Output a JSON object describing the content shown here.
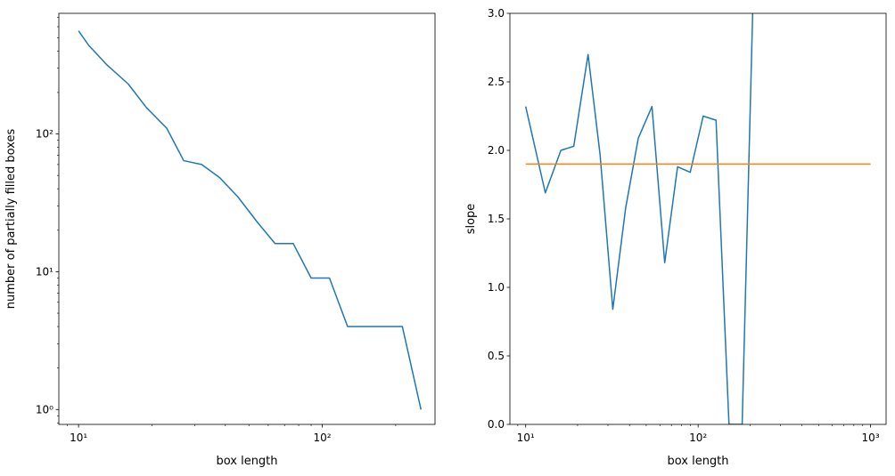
{
  "chart_data": [
    {
      "type": "line",
      "title": "",
      "xlabel": "box length",
      "ylabel": "number of partially filled boxes",
      "xscale": "log",
      "yscale": "log",
      "xlim": [
        8.3,
        290
      ],
      "ylim": [
        0.78,
        750
      ],
      "grid": false,
      "x_ticks": [
        {
          "value": 10,
          "label": "10¹"
        },
        {
          "value": 100,
          "label": "10²"
        }
      ],
      "y_ticks": [
        {
          "value": 1,
          "label": "10⁰"
        },
        {
          "value": 10,
          "label": "10¹"
        },
        {
          "value": 100,
          "label": "10²"
        }
      ],
      "series": [
        {
          "color": "#1f77b4",
          "x": [
            10,
            11,
            13,
            16,
            19,
            23,
            27,
            32,
            38,
            45,
            54,
            64,
            76,
            90,
            107,
            127,
            151,
            180,
            213,
            254
          ],
          "y": [
            560,
            440,
            320,
            230,
            155,
            110,
            64,
            60,
            48,
            35,
            23,
            16,
            16,
            9,
            9,
            4,
            4,
            4,
            4,
            1
          ]
        }
      ]
    },
    {
      "type": "line",
      "title": "",
      "xlabel": "box length",
      "ylabel": "slope",
      "xscale": "log",
      "yscale": "linear",
      "xlim": [
        8.1,
        1230
      ],
      "ylim": [
        0,
        3
      ],
      "grid": false,
      "x_ticks": [
        {
          "value": 10,
          "label": "10¹"
        },
        {
          "value": 100,
          "label": "10²"
        },
        {
          "value": 1000,
          "label": "10³"
        }
      ],
      "y_ticks": [
        {
          "value": 0,
          "label": "0.0"
        },
        {
          "value": 0.5,
          "label": "0.5"
        },
        {
          "value": 1,
          "label": "1.0"
        },
        {
          "value": 1.5,
          "label": "1.5"
        },
        {
          "value": 2,
          "label": "2.0"
        },
        {
          "value": 2.5,
          "label": "2.5"
        },
        {
          "value": 3,
          "label": "3.0"
        }
      ],
      "series": [
        {
          "color": "#1f77b4",
          "x": [
            10,
            13,
            16,
            19,
            23,
            27,
            32,
            38,
            45,
            54,
            64,
            76,
            90,
            107,
            127,
            151,
            180,
            213
          ],
          "y": [
            2.32,
            1.69,
            2.0,
            2.03,
            2.7,
            1.97,
            0.84,
            1.58,
            2.09,
            2.32,
            1.18,
            1.88,
            1.84,
            2.25,
            2.22,
            0.0,
            0.0,
            3.6
          ]
        },
        {
          "color": "#ff7f0e",
          "x": [
            10,
            1000
          ],
          "y": [
            1.9,
            1.9
          ]
        }
      ]
    }
  ]
}
